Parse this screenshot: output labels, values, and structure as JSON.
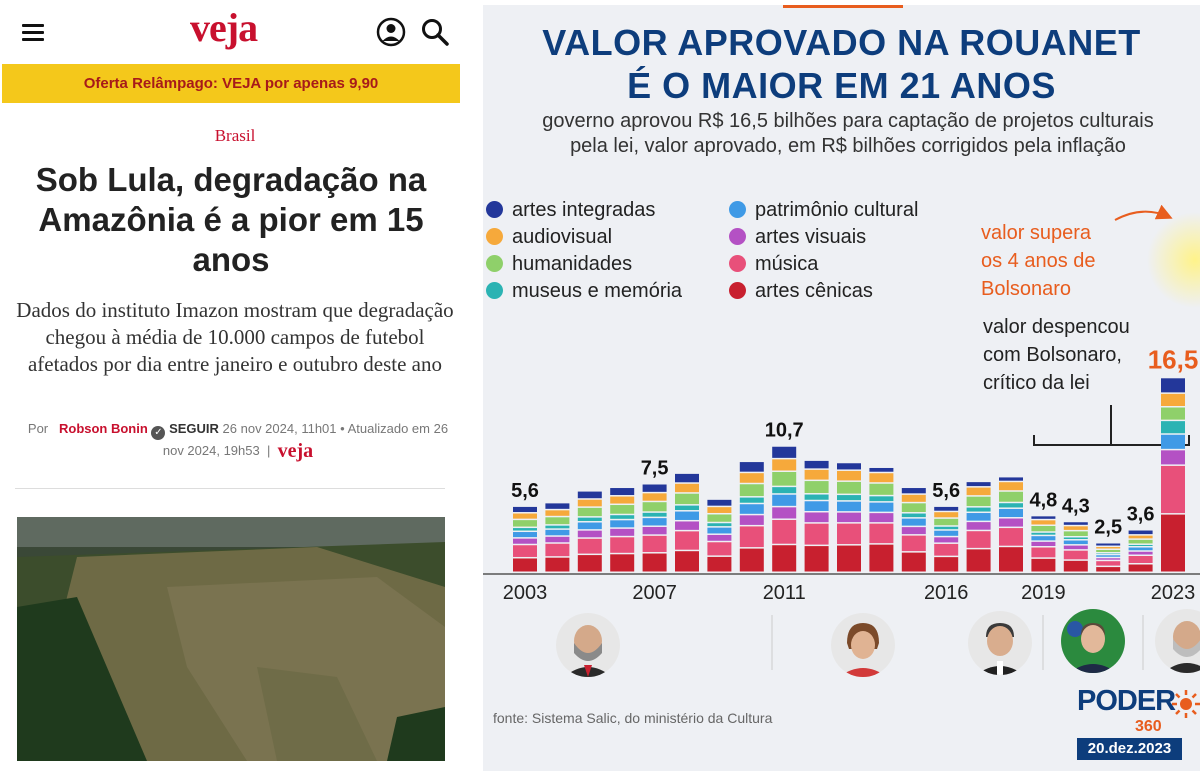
{
  "article": {
    "logo": "veja",
    "promo_banner": "Oferta Relâmpago: VEJA por apenas 9,90",
    "section": "Brasil",
    "headline": "Sob Lula, degradação na Amazônia é a pior em 15 anos",
    "dek": "Dados do instituto Imazon mostram que degradação chegou à média de 10.000 campos de futebol afetados por dia entre janeiro e outubro deste ano",
    "byline": {
      "prefix": "Por",
      "author": "Robson Bonin",
      "verified_icon": "check-circle-icon",
      "follow": "SEGUIR",
      "published": "26 nov 2024, 11h01",
      "separator": "•",
      "updated_label": "Atualizado em",
      "updated": "26 nov 2024, 19h53",
      "pipe": "|",
      "brand": "veja"
    },
    "icons": [
      "menu-icon",
      "user-account-icon",
      "search-icon"
    ]
  },
  "infographic": {
    "title_line1": "VALOR APROVADO NA ROUANET",
    "title_line2": "É O MAIOR EM 21 ANOS",
    "subtitle_line1": "governo aprovou R$ 16,5 bilhões para captação de projetos culturais",
    "subtitle_line2": "pela lei, valor aprovado, em R$ bilhões corrigidos pela inflação",
    "annotation_orange": [
      "valor supera",
      "os 4 anos de",
      "Bolsonaro"
    ],
    "annotation_dark": [
      "valor despencou",
      "com Bolsonaro,",
      "crítico da lei"
    ],
    "source": "fonte: Sistema Salic, do ministério da Cultura",
    "brand": "PODER",
    "brand_number": "360",
    "date": "20.dez.2023",
    "portraits": [
      "Lula",
      "Dilma",
      "Temer",
      "Bolsonaro",
      "Lula"
    ]
  },
  "chart_data": {
    "type": "bar",
    "stacked": true,
    "title": "VALOR APROVADO NA ROUANET É O MAIOR EM 21 ANOS",
    "ylabel": "",
    "xlabel": "",
    "ylim": [
      0,
      17
    ],
    "x_tick_labels": [
      "2003",
      "2007",
      "2011",
      "2016",
      "2019",
      "2023"
    ],
    "categories": [
      "2003",
      "2004",
      "2005",
      "2006",
      "2007",
      "2008",
      "2009",
      "2010",
      "2011",
      "2012",
      "2013",
      "2014",
      "2015",
      "2016",
      "2017",
      "2018",
      "2019",
      "2020",
      "2021",
      "2022",
      "2023"
    ],
    "totals": [
      5.6,
      5.9,
      6.9,
      7.2,
      7.5,
      8.4,
      6.2,
      9.4,
      10.7,
      9.5,
      9.3,
      8.9,
      7.2,
      5.6,
      7.7,
      8.1,
      4.8,
      4.3,
      2.5,
      3.6,
      16.5
    ],
    "data_labels": [
      {
        "x": "2003",
        "label": "5,6"
      },
      {
        "x": "2007",
        "label": "7,5"
      },
      {
        "x": "2011",
        "label": "10,7"
      },
      {
        "x": "2016",
        "label": "5,6"
      },
      {
        "x": "2019",
        "label": "4,8"
      },
      {
        "x": "2020",
        "label": "4,3"
      },
      {
        "x": "2021",
        "label": "2,5"
      },
      {
        "x": "2022",
        "label": "3,6"
      },
      {
        "x": "2023",
        "label": "16,5"
      }
    ],
    "series": [
      {
        "name": "artes cênicas",
        "color": "#c8202f",
        "shares": [
          0.22,
          0.22,
          0.22,
          0.22,
          0.22,
          0.22,
          0.22,
          0.22,
          0.22,
          0.24,
          0.25,
          0.27,
          0.24,
          0.24,
          0.26,
          0.27,
          0.25,
          0.24,
          0.2,
          0.2,
          0.3
        ]
      },
      {
        "name": "música",
        "color": "#e8507a",
        "shares": [
          0.2,
          0.2,
          0.2,
          0.2,
          0.2,
          0.2,
          0.2,
          0.2,
          0.2,
          0.2,
          0.2,
          0.2,
          0.2,
          0.2,
          0.2,
          0.2,
          0.2,
          0.2,
          0.2,
          0.2,
          0.25
        ]
      },
      {
        "name": "artes visuais",
        "color": "#b451c4",
        "shares": [
          0.1,
          0.1,
          0.1,
          0.1,
          0.1,
          0.1,
          0.1,
          0.1,
          0.1,
          0.1,
          0.1,
          0.1,
          0.1,
          0.1,
          0.1,
          0.1,
          0.1,
          0.1,
          0.1,
          0.1,
          0.08
        ]
      },
      {
        "name": "patrimônio cultural",
        "color": "#3f9ae6",
        "shares": [
          0.1,
          0.1,
          0.1,
          0.1,
          0.1,
          0.1,
          0.1,
          0.1,
          0.1,
          0.1,
          0.1,
          0.1,
          0.1,
          0.1,
          0.1,
          0.1,
          0.1,
          0.1,
          0.1,
          0.1,
          0.08
        ]
      },
      {
        "name": "museus e memória",
        "color": "#2bb3b3",
        "shares": [
          0.06,
          0.06,
          0.06,
          0.06,
          0.06,
          0.06,
          0.06,
          0.06,
          0.06,
          0.06,
          0.06,
          0.06,
          0.06,
          0.06,
          0.06,
          0.06,
          0.06,
          0.06,
          0.06,
          0.06,
          0.07
        ]
      },
      {
        "name": "humanidades",
        "color": "#8fd06a",
        "shares": [
          0.12,
          0.12,
          0.12,
          0.12,
          0.12,
          0.12,
          0.12,
          0.12,
          0.12,
          0.12,
          0.12,
          0.12,
          0.12,
          0.12,
          0.12,
          0.12,
          0.12,
          0.12,
          0.12,
          0.12,
          0.07
        ]
      },
      {
        "name": "audiovisual",
        "color": "#f6a93b",
        "shares": [
          0.1,
          0.1,
          0.1,
          0.1,
          0.1,
          0.1,
          0.1,
          0.1,
          0.1,
          0.1,
          0.1,
          0.1,
          0.1,
          0.1,
          0.1,
          0.1,
          0.1,
          0.1,
          0.1,
          0.1,
          0.07
        ]
      },
      {
        "name": "artes integradas",
        "color": "#23379a",
        "shares": [
          0.1,
          0.1,
          0.1,
          0.1,
          0.1,
          0.1,
          0.1,
          0.1,
          0.1,
          0.08,
          0.07,
          0.05,
          0.08,
          0.08,
          0.06,
          0.05,
          0.07,
          0.08,
          0.12,
          0.12,
          0.08
        ]
      }
    ],
    "legend": [
      "artes integradas",
      "audiovisual",
      "humanidades",
      "museus e memória",
      "patrimônio cultural",
      "artes visuais",
      "música",
      "artes cênicas"
    ],
    "legend_position": "top-left",
    "grid": false
  }
}
